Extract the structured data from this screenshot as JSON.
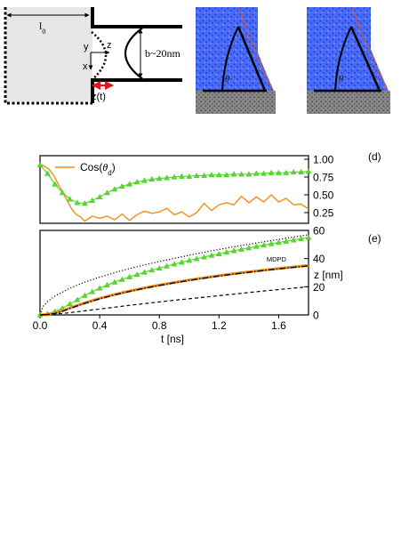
{
  "schematic": {
    "l0_label": "l",
    "l0_sub": "0",
    "y_label": "y",
    "x_label": "x",
    "z_label": "z",
    "zt_label": "z(t)",
    "b_label": "b~20nm"
  },
  "snapshots": [
    {
      "angle_label": "θ"
    },
    {
      "angle_label": "θ"
    }
  ],
  "colors": {
    "orange": "#f28c1a",
    "green": "#55dd2a",
    "blue_particles": "#3a5ff2",
    "wall_particles": "#7d7d7d",
    "surface_particles": "#e0532a"
  },
  "chart_data": [
    {
      "type": "line",
      "panel_label": "(d)",
      "legend_text": "Cos(",
      "legend_theta": "θ",
      "legend_sub": "d",
      "legend_close": ")",
      "xlim": [
        0,
        1.8
      ],
      "ylim": [
        0.1,
        1.05
      ],
      "y_ticks": [
        "1.00",
        "0.75",
        "0.50",
        "0.25"
      ],
      "y_tick_values": [
        1.0,
        0.75,
        0.5,
        0.25
      ],
      "series": [
        {
          "name": "Cos(θd)",
          "style": "orange-noisy",
          "x": [
            0.0,
            0.03,
            0.06,
            0.09,
            0.12,
            0.15,
            0.18,
            0.21,
            0.24,
            0.27,
            0.3,
            0.35,
            0.4,
            0.45,
            0.5,
            0.55,
            0.6,
            0.65,
            0.7,
            0.75,
            0.8,
            0.85,
            0.9,
            0.95,
            1.0,
            1.05,
            1.1,
            1.15,
            1.2,
            1.25,
            1.3,
            1.35,
            1.4,
            1.45,
            1.5,
            1.55,
            1.6,
            1.65,
            1.7,
            1.75,
            1.8
          ],
          "y": [
            0.93,
            0.9,
            0.86,
            0.78,
            0.66,
            0.54,
            0.43,
            0.31,
            0.23,
            0.19,
            0.13,
            0.2,
            0.17,
            0.2,
            0.15,
            0.23,
            0.14,
            0.22,
            0.27,
            0.24,
            0.26,
            0.31,
            0.22,
            0.26,
            0.19,
            0.25,
            0.38,
            0.28,
            0.36,
            0.39,
            0.36,
            0.48,
            0.39,
            0.47,
            0.4,
            0.5,
            0.4,
            0.45,
            0.36,
            0.37,
            0.3
          ]
        },
        {
          "name": "",
          "style": "green-triangles",
          "x": [
            0.0,
            0.05,
            0.1,
            0.15,
            0.2,
            0.25,
            0.3,
            0.35,
            0.4,
            0.45,
            0.5,
            0.55,
            0.6,
            0.65,
            0.7,
            0.75,
            0.8,
            0.85,
            0.9,
            0.95,
            1.0,
            1.05,
            1.1,
            1.15,
            1.2,
            1.25,
            1.3,
            1.35,
            1.4,
            1.45,
            1.5,
            1.55,
            1.6,
            1.65,
            1.7,
            1.75,
            1.8
          ],
          "y": [
            0.92,
            0.8,
            0.65,
            0.53,
            0.44,
            0.39,
            0.38,
            0.42,
            0.47,
            0.53,
            0.58,
            0.62,
            0.65,
            0.68,
            0.7,
            0.72,
            0.73,
            0.74,
            0.75,
            0.76,
            0.76,
            0.77,
            0.77,
            0.78,
            0.78,
            0.78,
            0.79,
            0.79,
            0.79,
            0.8,
            0.8,
            0.81,
            0.81,
            0.81,
            0.82,
            0.82,
            0.83
          ]
        }
      ]
    },
    {
      "type": "line",
      "panel_label": "(e)",
      "xlabel": "t [ns]",
      "ylabel": "z [nm]",
      "xlim": [
        0,
        1.8
      ],
      "ylim": [
        0,
        60
      ],
      "x_ticks": [
        "0.0",
        "0.4",
        "0.8",
        "1.2",
        "1.6"
      ],
      "x_tick_values": [
        0.0,
        0.4,
        0.8,
        1.2,
        1.6
      ],
      "y_ticks": [
        "0",
        "20",
        "40",
        "60"
      ],
      "y_tick_values": [
        0,
        20,
        40,
        60
      ],
      "annotation": "MDPD",
      "annotation_xy": [
        1.65,
        36.5
      ],
      "series": [
        {
          "name": "",
          "style": "dotted",
          "x": [
            0.0,
            0.02,
            0.05,
            0.1,
            0.2,
            0.3,
            0.4,
            0.5,
            0.6,
            0.7,
            0.8,
            0.9,
            1.0,
            1.1,
            1.2,
            1.3,
            1.4,
            1.5,
            1.6,
            1.7,
            1.8
          ],
          "y": [
            0.0,
            6.0,
            9.5,
            13.4,
            19.0,
            23.3,
            26.8,
            30.0,
            32.9,
            35.5,
            37.9,
            40.2,
            42.4,
            44.5,
            46.5,
            48.4,
            50.2,
            51.9,
            53.6,
            55.3,
            56.9
          ]
        },
        {
          "name": "",
          "style": "green-triangles",
          "x": [
            0.0,
            0.05,
            0.1,
            0.15,
            0.2,
            0.25,
            0.3,
            0.35,
            0.4,
            0.45,
            0.5,
            0.55,
            0.6,
            0.65,
            0.7,
            0.75,
            0.8,
            0.85,
            0.9,
            0.95,
            1.0,
            1.05,
            1.1,
            1.15,
            1.2,
            1.25,
            1.3,
            1.35,
            1.4,
            1.45,
            1.5,
            1.55,
            1.6,
            1.65,
            1.7,
            1.75,
            1.8
          ],
          "y": [
            0.0,
            0.8,
            2.5,
            4.8,
            7.8,
            10.8,
            13.8,
            16.5,
            19.0,
            21.2,
            23.3,
            25.2,
            27.0,
            28.7,
            30.3,
            31.8,
            33.3,
            34.7,
            36.1,
            37.4,
            38.7,
            39.9,
            41.1,
            42.3,
            43.4,
            44.5,
            45.6,
            46.6,
            47.6,
            48.6,
            49.6,
            50.5,
            51.4,
            52.3,
            53.2,
            54.1,
            55.0
          ]
        },
        {
          "name": "",
          "style": "orange-thick",
          "x": [
            0.0,
            0.05,
            0.1,
            0.15,
            0.2,
            0.3,
            0.4,
            0.5,
            0.6,
            0.7,
            0.8,
            0.9,
            1.0,
            1.1,
            1.2,
            1.3,
            1.4,
            1.5,
            1.6,
            1.7,
            1.8
          ],
          "y": [
            0.0,
            0.4,
            1.3,
            3.0,
            5.0,
            8.6,
            11.8,
            14.5,
            17.0,
            19.2,
            21.2,
            23.0,
            24.8,
            26.4,
            27.9,
            29.3,
            30.6,
            31.8,
            33.0,
            34.1,
            35.1
          ]
        },
        {
          "name": "",
          "style": "dashdot",
          "x": [
            0.0,
            0.05,
            0.1,
            0.15,
            0.2,
            0.3,
            0.4,
            0.5,
            0.6,
            0.7,
            0.8,
            0.9,
            1.0,
            1.1,
            1.2,
            1.3,
            1.4,
            1.5,
            1.6,
            1.7,
            1.8
          ],
          "y": [
            0.0,
            0.3,
            1.0,
            2.6,
            4.6,
            8.2,
            11.4,
            14.2,
            16.7,
            18.9,
            20.9,
            22.8,
            24.5,
            26.1,
            27.6,
            29.0,
            30.3,
            31.5,
            32.7,
            33.8,
            34.8
          ]
        },
        {
          "name": "",
          "style": "dashed",
          "x": [
            0.0,
            0.1,
            0.2,
            0.3,
            0.4,
            0.5,
            0.6,
            0.7,
            0.8,
            0.9,
            1.0,
            1.1,
            1.2,
            1.3,
            1.4,
            1.5,
            1.6,
            1.7,
            1.8
          ],
          "y": [
            0.0,
            0.6,
            1.6,
            2.9,
            4.2,
            5.5,
            6.8,
            8.0,
            9.2,
            10.4,
            11.5,
            12.6,
            13.7,
            14.8,
            15.9,
            17.0,
            18.0,
            19.0,
            20.0
          ]
        }
      ]
    }
  ]
}
